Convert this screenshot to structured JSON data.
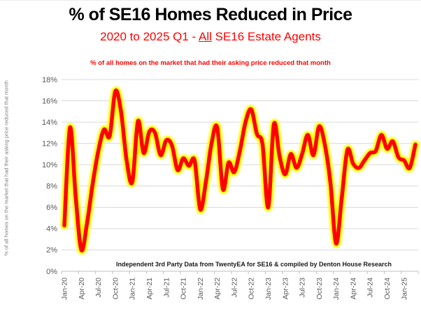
{
  "page": {
    "title": "% of SE16 Homes Reduced in Price",
    "subtitle": {
      "prefix": "2020 to 2025 Q1 - ",
      "underlined": "All",
      "suffix": " SE16 Estate Agents"
    },
    "note": "% of all homes on the market that had their asking price reduced that month"
  },
  "chart_data": {
    "type": "line",
    "title": "% of SE16 Homes Reduced in Price",
    "subtitle": "2020 to 2025 Q1 - All SE16 Estate Agents",
    "xlabel": "",
    "ylabel": "% of all homes on the market that had their asking price reduced that month",
    "annotation": "Independent 3rd Party Data from TwentyEA for SE16 & compiled by Denton House Research",
    "x": [
      "Jan-20",
      "Feb-20",
      "Mar-20",
      "Apr-20",
      "May-20",
      "Jun-20",
      "Jul-20",
      "Aug-20",
      "Sep-20",
      "Oct-20",
      "Nov-20",
      "Dec-20",
      "Jan-21",
      "Feb-21",
      "Mar-21",
      "Apr-21",
      "May-21",
      "Jun-21",
      "Jul-21",
      "Aug-21",
      "Sep-21",
      "Oct-21",
      "Nov-21",
      "Dec-21",
      "Jan-22",
      "Feb-22",
      "Mar-22",
      "Apr-22",
      "May-22",
      "Jun-22",
      "Jul-22",
      "Aug-22",
      "Sep-22",
      "Oct-22",
      "Nov-22",
      "Dec-22",
      "Jan-23",
      "Feb-23",
      "Mar-23",
      "Apr-23",
      "May-23",
      "Jun-23",
      "Jul-23",
      "Aug-23",
      "Sep-23",
      "Oct-23",
      "Nov-23",
      "Dec-23",
      "Jan-24",
      "Feb-24",
      "Mar-24",
      "Apr-24",
      "May-24",
      "Jun-24",
      "Jul-24",
      "Aug-24",
      "Sep-24",
      "Oct-24",
      "Nov-24",
      "Dec-24",
      "Jan-25",
      "Feb-25",
      "Mar-25"
    ],
    "values": [
      4.3,
      13.5,
      7.0,
      2.0,
      4.5,
      8.2,
      11.3,
      13.3,
      12.7,
      16.9,
      15.0,
      10.4,
      8.4,
      14.1,
      11.1,
      13.1,
      13.0,
      10.9,
      12.3,
      11.8,
      9.5,
      10.6,
      9.9,
      10.4,
      5.8,
      8.4,
      12.0,
      13.5,
      7.7,
      10.2,
      9.3,
      11.3,
      14.0,
      15.2,
      12.9,
      11.9,
      6.0,
      13.8,
      10.8,
      9.1,
      11.0,
      9.7,
      11.0,
      12.8,
      10.9,
      13.6,
      11.9,
      8.3,
      2.6,
      6.9,
      11.4,
      10.1,
      9.7,
      10.4,
      11.1,
      11.3,
      12.8,
      11.5,
      12.2,
      10.7,
      10.4,
      9.7,
      11.9
    ],
    "x_tick_labels": [
      "Jan-20",
      "Apr-20",
      "Jul-20",
      "Oct-20",
      "Jan-21",
      "Apr-21",
      "Jul-21",
      "Oct-21",
      "Jan-22",
      "Apr-22",
      "Jul-22",
      "Oct-22",
      "Jan-23",
      "Apr-23",
      "Jul-23",
      "Oct-23",
      "Jan-24",
      "Apr-24",
      "Jul-24",
      "Oct-24",
      "Jan-25"
    ],
    "y_tick_labels": [
      "0%",
      "2%",
      "4%",
      "6%",
      "8%",
      "10%",
      "12%",
      "14%",
      "16%",
      "18%"
    ],
    "ylim": [
      0,
      18
    ],
    "y_tick_step": 2,
    "grid": "horizontal",
    "legend": "none",
    "line_color": "#ff0000",
    "glow_color": "#ffff00",
    "grid_color": "#d9d9d9",
    "axis_line_color": "#bfbfbf",
    "axis_text_color": "#595959",
    "subtitle_color": "#ff0000"
  }
}
